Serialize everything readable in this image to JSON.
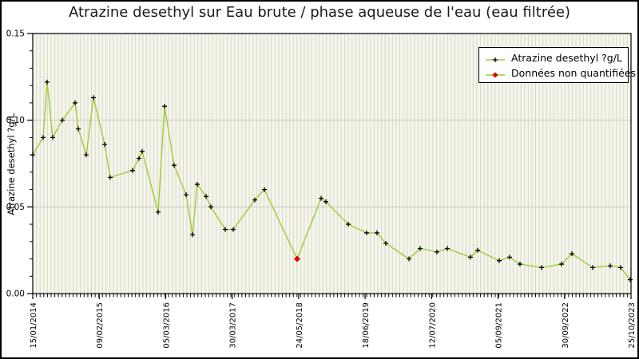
{
  "chart_data": {
    "type": "line",
    "title": "Atrazine desethyl sur Eau brute / phase aqueuse de l'eau (eau filtrée)",
    "ylabel": "Atrazine desethyl ?g/L",
    "xlabel": "",
    "ylim": [
      0,
      0.15
    ],
    "yticks": [
      0,
      0.05,
      0.1,
      0.15
    ],
    "ytick_labels": [
      "0.00",
      "0.05",
      "0.10",
      "0.15"
    ],
    "y_minor_step": 0.01,
    "xtick_labels": [
      "15/01/2014",
      "09/02/2015",
      "05/03/2016",
      "30/03/2017",
      "24/05/2018",
      "18/06/2019",
      "12/07/2020",
      "05/09/2021",
      "30/09/2022",
      "25/10/2023"
    ],
    "grid": {
      "horizontal_major": true,
      "vertical_stripes": true,
      "stripe_count": 163
    },
    "legend": {
      "position": "top-right",
      "items": [
        {
          "label": "Atrazine desethyl ?g/L",
          "marker": "black-plus-on-green-line"
        },
        {
          "label": "Données non quantifiées",
          "marker": "red-diamond-on-green-line"
        }
      ]
    },
    "series": [
      {
        "name": "Atrazine desethyl ?g/L",
        "x_unit": "fraction-of-x-axis",
        "points": [
          [
            0.0,
            0.08
          ],
          [
            0.0174,
            0.09
          ],
          [
            0.024,
            0.122
          ],
          [
            0.0334,
            0.09
          ],
          [
            0.0494,
            0.1
          ],
          [
            0.0708,
            0.11
          ],
          [
            0.0761,
            0.095
          ],
          [
            0.0894,
            0.08
          ],
          [
            0.1015,
            0.113
          ],
          [
            0.1202,
            0.086
          ],
          [
            0.1295,
            0.067
          ],
          [
            0.1669,
            0.071
          ],
          [
            0.1776,
            0.078
          ],
          [
            0.1829,
            0.082
          ],
          [
            0.2096,
            0.047
          ],
          [
            0.2203,
            0.108
          ],
          [
            0.2363,
            0.074
          ],
          [
            0.2564,
            0.057
          ],
          [
            0.267,
            0.034
          ],
          [
            0.275,
            0.063
          ],
          [
            0.2897,
            0.056
          ],
          [
            0.2977,
            0.05
          ],
          [
            0.3218,
            0.037
          ],
          [
            0.3351,
            0.037
          ],
          [
            0.3712,
            0.054
          ],
          [
            0.3872,
            0.06
          ],
          [
            0.4419,
            0.02
          ],
          [
            0.482,
            0.055
          ],
          [
            0.49,
            0.053
          ],
          [
            0.5274,
            0.04
          ],
          [
            0.5581,
            0.035
          ],
          [
            0.5754,
            0.035
          ],
          [
            0.5901,
            0.029
          ],
          [
            0.6289,
            0.02
          ],
          [
            0.6475,
            0.026
          ],
          [
            0.6756,
            0.024
          ],
          [
            0.6929,
            0.026
          ],
          [
            0.7316,
            0.021
          ],
          [
            0.7437,
            0.025
          ],
          [
            0.7797,
            0.019
          ],
          [
            0.797,
            0.021
          ],
          [
            0.8144,
            0.017
          ],
          [
            0.8505,
            0.015
          ],
          [
            0.8838,
            0.017
          ],
          [
            0.9012,
            0.023
          ],
          [
            0.9359,
            0.015
          ],
          [
            0.9653,
            0.016
          ],
          [
            0.9826,
            0.015
          ],
          [
            0.9987,
            0.008
          ]
        ],
        "unquantified_indices": [
          26
        ]
      }
    ]
  },
  "colors": {
    "line": "#9acd32",
    "marker": "#000000",
    "unquantified": "#dd0000",
    "plot_bg": "#f5f5eb",
    "stripe": "#d8d8ca",
    "grid": "#c9c9c9",
    "axis": "#000000",
    "legend_bg": "#ffffff",
    "text": "#000000"
  }
}
